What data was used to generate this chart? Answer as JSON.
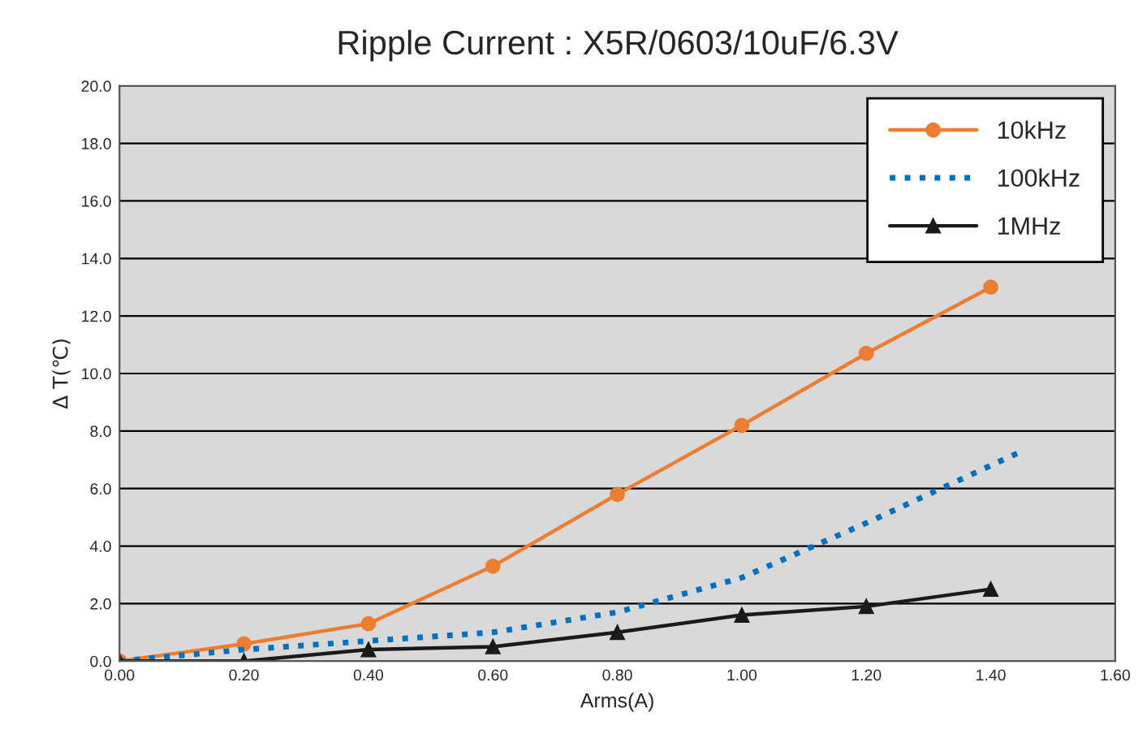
{
  "chart_data": {
    "type": "line",
    "title": "Ripple Current : X5R/0603/10uF/6.3V",
    "xlabel": "Arms(A)",
    "ylabel": "Δ T(℃)",
    "xlim": [
      0,
      1.6
    ],
    "xticks": [
      {
        "value": 0,
        "label": "0.00"
      },
      {
        "value": 0.2,
        "label": "0.20"
      },
      {
        "value": 0.4,
        "label": "0.40"
      },
      {
        "value": 0.6,
        "label": "0.60"
      },
      {
        "value": 0.8,
        "label": "0.80"
      },
      {
        "value": 1.0,
        "label": "1.00"
      },
      {
        "value": 1.2,
        "label": "1.20"
      },
      {
        "value": 1.4,
        "label": "1.40"
      },
      {
        "value": 1.6,
        "label": "1.60"
      }
    ],
    "ylim": [
      0,
      20
    ],
    "yticks": [
      {
        "value": 0,
        "label": "0.0"
      },
      {
        "value": 2,
        "label": "2.0"
      },
      {
        "value": 4,
        "label": "4.0"
      },
      {
        "value": 6,
        "label": "6.0"
      },
      {
        "value": 8,
        "label": "8.0"
      },
      {
        "value": 10,
        "label": "10.0"
      },
      {
        "value": 12,
        "label": "12.0"
      },
      {
        "value": 14,
        "label": "14.0"
      },
      {
        "value": 16,
        "label": "16.0"
      },
      {
        "value": 18,
        "label": "18.0"
      },
      {
        "value": 20,
        "label": "20.0"
      }
    ],
    "grid": "y",
    "legend": "top right",
    "series": [
      {
        "name": "10kHz",
        "color": "#ed7d31",
        "marker": "circle",
        "line_style": "solid",
        "x": [
          0,
          0.2,
          0.4,
          0.6,
          0.8,
          1.0,
          1.2,
          1.4
        ],
        "values": [
          0,
          0.6,
          1.3,
          3.3,
          5.8,
          8.2,
          10.7,
          13.0
        ]
      },
      {
        "name": "100kHz",
        "color": "#0070c0",
        "marker": "none",
        "line_style": "dotted",
        "x": [
          0,
          0.2,
          0.4,
          0.6,
          0.8,
          1.0,
          1.2,
          1.45
        ],
        "values": [
          0,
          0.4,
          0.7,
          1.0,
          1.7,
          2.9,
          4.8,
          7.3
        ]
      },
      {
        "name": "1MHz",
        "color": "#1a1a1a",
        "marker": "triangle",
        "line_style": "solid",
        "x": [
          0,
          0.2,
          0.4,
          0.6,
          0.8,
          1.0,
          1.2,
          1.4
        ],
        "values": [
          0,
          0,
          0.4,
          0.5,
          1.0,
          1.6,
          1.9,
          2.5
        ]
      }
    ]
  }
}
